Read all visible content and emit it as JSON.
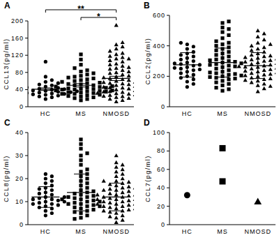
{
  "chart_data": [
    {
      "type": "scatter",
      "title": "A",
      "y_label": "CCL13(pg/ml)",
      "categories": [
        "HC",
        "MS",
        "NMOSD"
      ],
      "ylim": [
        0,
        200
      ],
      "yticks": [
        0,
        40,
        80,
        120,
        160,
        200
      ],
      "groups": [
        {
          "marker": "circle",
          "mean": 41,
          "error": 3,
          "values": [
            18,
            22,
            24,
            26,
            28,
            29,
            30,
            31,
            32,
            33,
            34,
            35,
            35,
            36,
            37,
            38,
            38,
            40,
            41,
            42,
            44,
            45,
            47,
            50,
            52,
            55,
            58,
            62,
            70,
            105
          ]
        },
        {
          "marker": "square",
          "mean": 50,
          "error": 4,
          "values": [
            15,
            18,
            20,
            22,
            24,
            25,
            27,
            28,
            30,
            30,
            32,
            33,
            34,
            35,
            36,
            37,
            38,
            38,
            40,
            40,
            41,
            42,
            43,
            44,
            45,
            46,
            47,
            48,
            50,
            50,
            52,
            53,
            55,
            56,
            58,
            60,
            62,
            64,
            66,
            68,
            70,
            72,
            75,
            78,
            82,
            85,
            90,
            98,
            110,
            122
          ]
        },
        {
          "marker": "triangle",
          "mean": 66,
          "error": 5,
          "values": [
            12,
            15,
            18,
            20,
            22,
            24,
            25,
            27,
            28,
            30,
            31,
            32,
            34,
            35,
            36,
            38,
            40,
            42,
            44,
            45,
            46,
            48,
            50,
            52,
            54,
            55,
            57,
            58,
            60,
            62,
            64,
            66,
            68,
            70,
            72,
            75,
            78,
            80,
            82,
            85,
            88,
            90,
            95,
            98,
            100,
            105,
            108,
            112,
            115,
            118,
            122,
            125,
            130,
            135,
            140,
            145,
            150,
            112,
            92,
            190
          ]
        }
      ],
      "annotations": [
        {
          "text": "**",
          "from": 0,
          "to": 2
        },
        {
          "text": "*",
          "from": 1,
          "to": 2
        }
      ]
    },
    {
      "type": "scatter",
      "title": "B",
      "y_label": "CCL2(pg/ml)",
      "categories": [
        "HC",
        "MS",
        "NMOSD"
      ],
      "ylim": [
        0,
        600
      ],
      "yticks": [
        0,
        200,
        400,
        600
      ],
      "groups": [
        {
          "marker": "circle",
          "mean": 275,
          "error": 80,
          "values": [
            130,
            150,
            165,
            180,
            190,
            200,
            210,
            220,
            230,
            240,
            245,
            250,
            255,
            260,
            270,
            275,
            280,
            285,
            290,
            300,
            310,
            320,
            330,
            340,
            350,
            360,
            380,
            395,
            410,
            420
          ]
        },
        {
          "marker": "square",
          "mean": 290,
          "error": 95,
          "values": [
            105,
            115,
            125,
            140,
            150,
            160,
            170,
            180,
            185,
            190,
            195,
            200,
            205,
            210,
            215,
            220,
            225,
            230,
            240,
            250,
            260,
            265,
            270,
            275,
            280,
            285,
            290,
            295,
            300,
            305,
            310,
            320,
            330,
            340,
            350,
            360,
            370,
            380,
            390,
            400,
            410,
            420,
            430,
            450,
            470,
            490,
            510,
            520,
            550,
            560
          ]
        },
        {
          "marker": "triangle",
          "mean": 270,
          "error": 85,
          "values": [
            100,
            120,
            140,
            150,
            160,
            170,
            180,
            185,
            190,
            200,
            205,
            210,
            215,
            220,
            225,
            230,
            235,
            240,
            245,
            250,
            255,
            260,
            262,
            265,
            270,
            275,
            280,
            285,
            290,
            295,
            300,
            305,
            310,
            315,
            320,
            325,
            330,
            340,
            350,
            360,
            370,
            380,
            390,
            400,
            420,
            440,
            460,
            480,
            500,
            135,
            175,
            245,
            285,
            335,
            410
          ]
        }
      ]
    },
    {
      "type": "scatter",
      "title": "C",
      "y_label": "CCL8(pg/ml)",
      "categories": [
        "HC",
        "MS",
        "NMOSD"
      ],
      "ylim": [
        0,
        40
      ],
      "yticks": [
        0,
        10,
        20,
        30,
        40
      ],
      "groups": [
        {
          "marker": "circle",
          "mean": 12,
          "error": 4.5,
          "values": [
            4,
            5,
            6,
            7,
            7.5,
            8,
            8.5,
            9,
            9,
            9.5,
            10,
            10,
            10.5,
            11,
            11,
            11.5,
            12,
            12,
            13,
            13.5,
            14,
            15,
            15.5,
            16,
            17,
            18,
            19,
            20,
            21,
            22
          ]
        },
        {
          "marker": "square",
          "mean": 14,
          "error": 8,
          "values": [
            3,
            4,
            5,
            5.5,
            6,
            6.5,
            7,
            7.5,
            8,
            8.5,
            9,
            9,
            9.5,
            10,
            10,
            10.5,
            11,
            11.5,
            12,
            12,
            12.5,
            13,
            13.5,
            14,
            14.5,
            15,
            16,
            17,
            18,
            19,
            20,
            21,
            22,
            23,
            24,
            26,
            28,
            30,
            31,
            33,
            35,
            37,
            2.5,
            8,
            11
          ]
        },
        {
          "marker": "triangle",
          "mean": 12,
          "error": 6,
          "values": [
            1,
            2,
            3,
            4,
            5,
            5.5,
            6,
            6.5,
            7,
            7.5,
            8,
            8,
            8.5,
            9,
            9,
            9.5,
            10,
            10,
            10.5,
            11,
            11,
            11.5,
            12,
            12,
            12.5,
            13,
            13,
            13.5,
            14,
            14.5,
            15,
            15.5,
            16,
            16.5,
            17,
            17.5,
            18,
            18.5,
            19,
            20,
            21,
            22,
            23,
            24,
            25,
            27,
            30,
            7,
            9,
            11,
            13,
            15,
            6,
            10,
            12,
            14,
            3.5,
            16,
            19,
            26
          ]
        }
      ]
    },
    {
      "type": "scatter",
      "title": "D",
      "y_label": "CCL7(pg/ml)",
      "categories": [
        "HC",
        "MS",
        "NMOSD"
      ],
      "ylim": [
        0,
        100
      ],
      "yticks": [
        0,
        20,
        40,
        60,
        80,
        100
      ],
      "groups": [
        {
          "marker": "circle",
          "values": [
            32
          ]
        },
        {
          "marker": "square",
          "values": [
            47,
            83
          ]
        },
        {
          "marker": "triangle",
          "values": [
            25
          ]
        }
      ]
    }
  ]
}
